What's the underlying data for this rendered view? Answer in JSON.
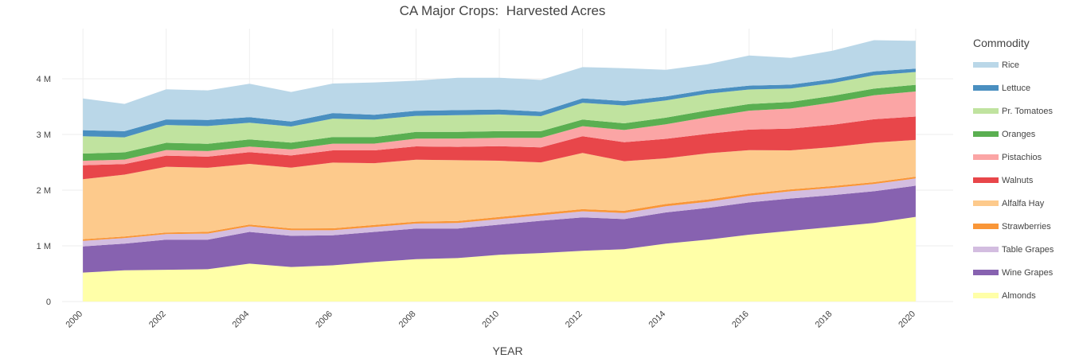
{
  "chart_data": {
    "type": "area",
    "stacked": true,
    "title": "CA Major Crops:  Harvested Acres",
    "xlabel": "YEAR",
    "ylabel": "",
    "x": [
      2000,
      2001,
      2002,
      2003,
      2004,
      2005,
      2006,
      2007,
      2008,
      2009,
      2010,
      2011,
      2012,
      2013,
      2014,
      2015,
      2016,
      2017,
      2018,
      2019,
      2020
    ],
    "xlim": [
      1999.5,
      2020.9
    ],
    "ylim": [
      0,
      4900000
    ],
    "x_ticks": [
      2000,
      2002,
      2004,
      2006,
      2008,
      2010,
      2012,
      2014,
      2016,
      2018,
      2020
    ],
    "x_tick_labels": [
      "2000",
      "2002",
      "2004",
      "2006",
      "2008",
      "2010",
      "2012",
      "2014",
      "2016",
      "2018",
      "2020"
    ],
    "y_ticks": [
      0,
      1000000,
      2000000,
      3000000,
      4000000
    ],
    "y_tick_labels": [
      "0",
      "1 M",
      "2 M",
      "3 M",
      "4 M"
    ],
    "grid": true,
    "legend": {
      "title": "Commodity",
      "position": "right"
    },
    "series": [
      {
        "name": "Almonds",
        "color": "#ffffa8",
        "values": [
          520000,
          560000,
          570000,
          580000,
          680000,
          620000,
          650000,
          710000,
          760000,
          780000,
          840000,
          870000,
          910000,
          940000,
          1040000,
          1110000,
          1200000,
          1270000,
          1340000,
          1410000,
          1520000
        ]
      },
      {
        "name": "Wine Grapes",
        "color": "#8762b0",
        "values": [
          470000,
          480000,
          540000,
          530000,
          570000,
          560000,
          540000,
          540000,
          550000,
          530000,
          540000,
          580000,
          600000,
          540000,
          560000,
          570000,
          580000,
          580000,
          570000,
          570000,
          560000
        ]
      },
      {
        "name": "Table Grapes",
        "color": "#d3bde0",
        "values": [
          100000,
          100000,
          100000,
          110000,
          100000,
          100000,
          90000,
          90000,
          90000,
          100000,
          100000,
          100000,
          110000,
          110000,
          110000,
          110000,
          120000,
          130000,
          130000,
          130000,
          130000
        ]
      },
      {
        "name": "Strawberries",
        "color": "#f99638",
        "values": [
          27000,
          28000,
          30000,
          31000,
          32000,
          33000,
          34000,
          35000,
          35000,
          37000,
          38000,
          39000,
          38000,
          40000,
          41000,
          42000,
          37000,
          35000,
          33000,
          33000,
          32000
        ]
      },
      {
        "name": "Alfalfa Hay",
        "color": "#fdca8c",
        "values": [
          1080000,
          1110000,
          1180000,
          1150000,
          1090000,
          1090000,
          1180000,
          1110000,
          1110000,
          1090000,
          1010000,
          910000,
          1010000,
          890000,
          820000,
          830000,
          780000,
          700000,
          700000,
          710000,
          660000
        ]
      },
      {
        "name": "Walnuts",
        "color": "#e8464a",
        "values": [
          250000,
          190000,
          200000,
          200000,
          210000,
          220000,
          220000,
          230000,
          240000,
          240000,
          260000,
          270000,
          300000,
          340000,
          350000,
          350000,
          370000,
          390000,
          400000,
          420000,
          420000
        ]
      },
      {
        "name": "Pistachios",
        "color": "#fba5a5",
        "values": [
          80000,
          80000,
          100000,
          100000,
          100000,
          110000,
          120000,
          120000,
          140000,
          150000,
          150000,
          170000,
          180000,
          220000,
          260000,
          300000,
          340000,
          360000,
          400000,
          430000,
          450000
        ]
      },
      {
        "name": "Oranges",
        "color": "#5aaf51",
        "values": [
          130000,
          130000,
          130000,
          130000,
          130000,
          120000,
          120000,
          120000,
          120000,
          120000,
          120000,
          120000,
          120000,
          120000,
          120000,
          120000,
          120000,
          120000,
          120000,
          120000,
          120000
        ]
      },
      {
        "name": "Pr. Tomatoes",
        "color": "#c0e39f",
        "values": [
          310000,
          270000,
          320000,
          320000,
          300000,
          290000,
          330000,
          310000,
          290000,
          300000,
          300000,
          270000,
          300000,
          320000,
          310000,
          300000,
          260000,
          240000,
          230000,
          240000,
          230000
        ]
      },
      {
        "name": "Lettuce",
        "color": "#4a8fc0",
        "values": [
          110000,
          110000,
          100000,
          110000,
          100000,
          90000,
          100000,
          90000,
          90000,
          90000,
          90000,
          80000,
          80000,
          80000,
          70000,
          70000,
          70000,
          70000,
          70000,
          70000,
          60000
        ]
      },
      {
        "name": "Rice",
        "color": "#bad7e8",
        "values": [
          570000,
          490000,
          540000,
          530000,
          600000,
          530000,
          530000,
          580000,
          540000,
          580000,
          570000,
          570000,
          560000,
          590000,
          480000,
          460000,
          540000,
          480000,
          510000,
          560000,
          500000
        ]
      }
    ]
  }
}
